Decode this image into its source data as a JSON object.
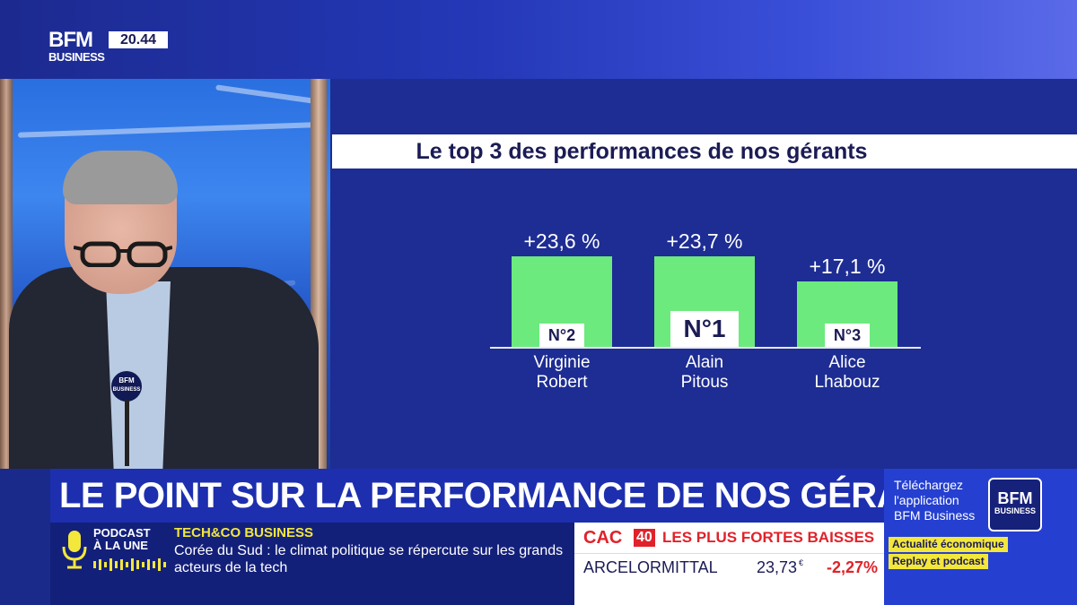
{
  "channel": {
    "logo_line1": "BFM",
    "logo_line2": "BUSINESS",
    "time": "20.44"
  },
  "mic_flag": {
    "line1": "BFM",
    "line2": "BUSINESS"
  },
  "chart_data": {
    "type": "bar",
    "title": "Le top 3 des performances de nos gérants",
    "categories": [
      "Virginie Robert",
      "Alain Pitous",
      "Alice Lhabouz"
    ],
    "name_lines": [
      [
        "Virginie",
        "Robert"
      ],
      [
        "Alain",
        "Pitous"
      ],
      [
        "Alice",
        "Lhabouz"
      ]
    ],
    "values": [
      23.6,
      23.7,
      17.1
    ],
    "value_labels": [
      "+23,6 %",
      "+23,7 %",
      "+17,1 %"
    ],
    "ranks": [
      "N°2",
      "N°1",
      "N°3"
    ],
    "unit": "%",
    "ylim": [
      0,
      23.7
    ],
    "colors": {
      "bar": "#6cea7e"
    }
  },
  "lower_third": {
    "headline": "LE POINT SUR LA PERFORMANCE DE NOS GÉRANTS"
  },
  "promo": {
    "line1": "Téléchargez",
    "line2": "l'application",
    "line3": "BFM Business",
    "logo_line1": "BFM",
    "logo_line2": "BUSINESS",
    "tag1": "Actualité économique",
    "tag2": "Replay et podcast"
  },
  "ticker": {
    "podcast_line1": "PODCAST",
    "podcast_line2": "À LA UNE",
    "section": "TECH&CO BUSINESS",
    "text": "Corée du Sud : le climat politique se répercute sur les grands acteurs de la tech"
  },
  "market": {
    "index_name": "CAC",
    "index_number": "40",
    "title": "LES PLUS FORTES BAISSES",
    "stock": "ARCELORMITTAL",
    "price": "23,73",
    "currency": "€",
    "change": "-2,27%"
  },
  "colors": {
    "brand_blue": "#1d2fae",
    "accent_green": "#6cea7e",
    "accent_yellow": "#f3e73c",
    "drop_red": "#e0222a"
  }
}
